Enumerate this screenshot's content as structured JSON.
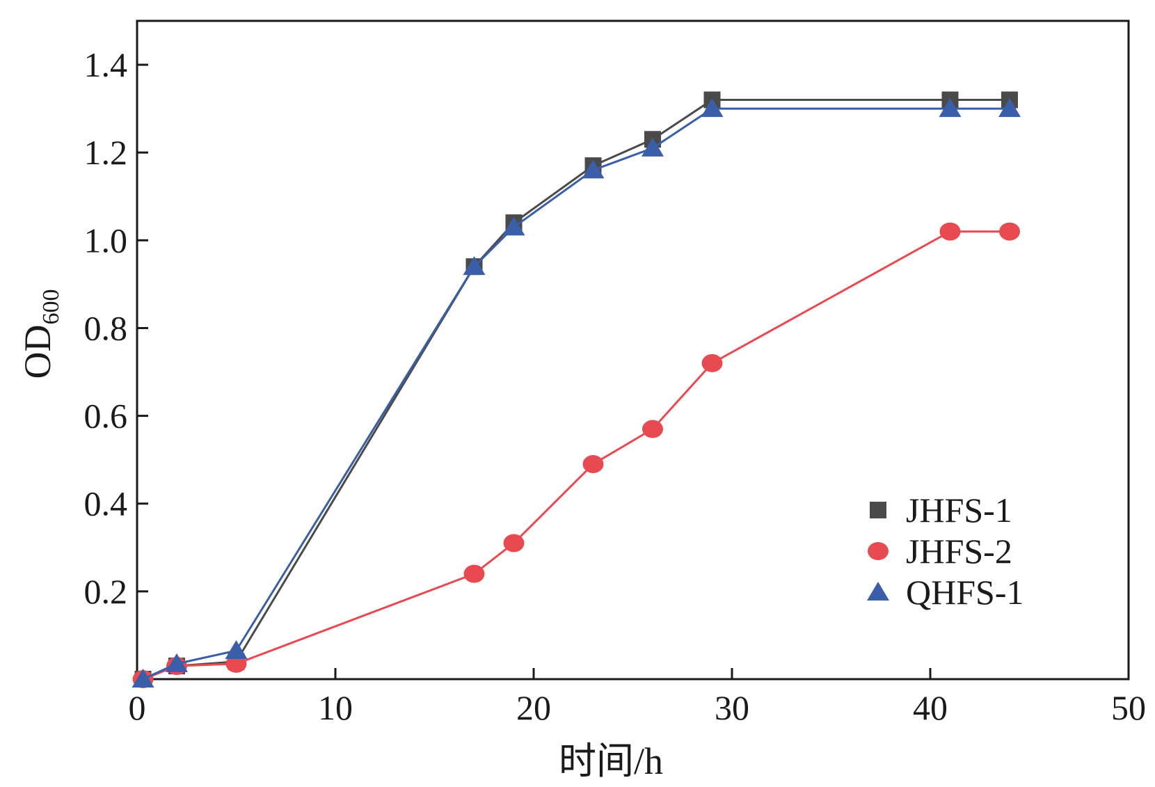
{
  "chart_data": {
    "type": "line",
    "xlabel": "时间/h",
    "ylabel": {
      "main": "OD",
      "subscript": "600"
    },
    "xlim": [
      0,
      50
    ],
    "ylim": [
      0,
      1.5
    ],
    "xticks": [
      0,
      10,
      20,
      30,
      40,
      50
    ],
    "yticks": [
      0.2,
      0.4,
      0.6,
      0.8,
      1.0,
      1.2,
      1.4
    ],
    "xtick_labels": [
      "0",
      "10",
      "20",
      "30",
      "40",
      "50"
    ],
    "ytick_labels": [
      "0.2",
      "0.4",
      "0.6",
      "0.8",
      "1.0",
      "1.2",
      "1.4"
    ],
    "grid": false,
    "legend_position": "bottom-right",
    "series": [
      {
        "name": "JHFS-1",
        "marker": "square",
        "color": "#4a4a4a",
        "x": [
          0.3,
          2,
          5,
          17,
          19,
          23,
          26,
          29,
          41,
          44
        ],
        "y": [
          0.0,
          0.03,
          0.04,
          0.94,
          1.04,
          1.17,
          1.23,
          1.32,
          1.32,
          1.32
        ]
      },
      {
        "name": "JHFS-2",
        "marker": "circle",
        "color": "#e84a52",
        "x": [
          0.3,
          2,
          5,
          17,
          19,
          23,
          26,
          29,
          41,
          44
        ],
        "y": [
          0.0,
          0.03,
          0.035,
          0.24,
          0.31,
          0.49,
          0.57,
          0.72,
          1.02,
          1.02
        ]
      },
      {
        "name": "QHFS-1",
        "marker": "triangle",
        "color": "#3b5ea8",
        "x": [
          0.3,
          2,
          5,
          17,
          19,
          23,
          26,
          29,
          41,
          44
        ],
        "y": [
          0.0,
          0.035,
          0.065,
          0.94,
          1.03,
          1.16,
          1.21,
          1.3,
          1.3,
          1.3
        ]
      }
    ]
  }
}
